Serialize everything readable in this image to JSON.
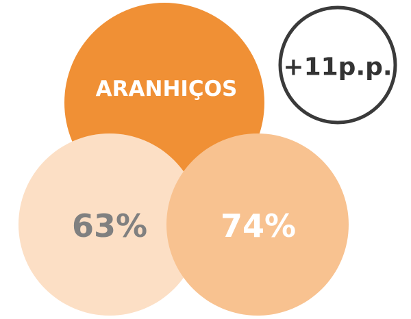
{
  "header": {
    "label": "ARANHIÇOS"
  },
  "circles": [
    {
      "label": "63%"
    },
    {
      "label": "74%"
    }
  ],
  "badge": {
    "label": "+11p.p."
  }
}
